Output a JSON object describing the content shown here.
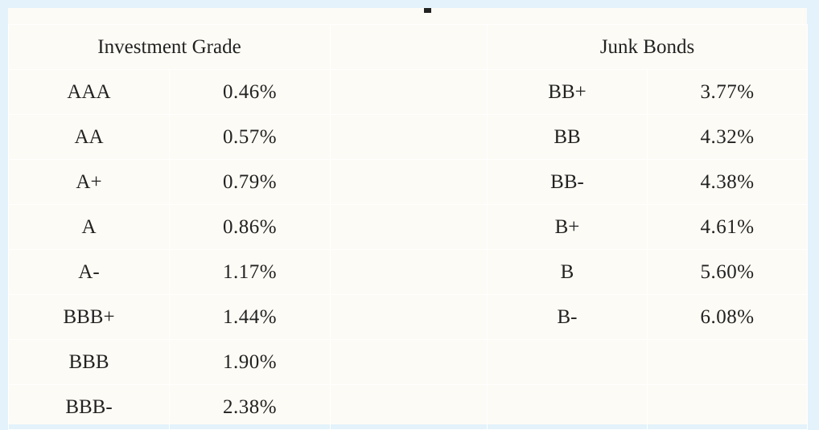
{
  "headers": {
    "investment_grade": "Investment Grade",
    "junk_bonds": "Junk Bonds"
  },
  "investment_grade": [
    {
      "rating": "AAA",
      "rate": "0.46%"
    },
    {
      "rating": "AA",
      "rate": "0.57%"
    },
    {
      "rating": "A+",
      "rate": "0.79%"
    },
    {
      "rating": "A",
      "rate": "0.86%"
    },
    {
      "rating": "A-",
      "rate": "1.17%"
    },
    {
      "rating": "BBB+",
      "rate": "1.44%"
    },
    {
      "rating": "BBB",
      "rate": "1.90%"
    },
    {
      "rating": "BBB-",
      "rate": "2.38%"
    }
  ],
  "junk_bonds": [
    {
      "rating": "BB+",
      "rate": "3.77%"
    },
    {
      "rating": "BB",
      "rate": "4.32%"
    },
    {
      "rating": "BB-",
      "rate": "4.38%"
    },
    {
      "rating": "B+",
      "rate": "4.61%"
    },
    {
      "rating": "B",
      "rate": "5.60%"
    },
    {
      "rating": "B-",
      "rate": "6.08%"
    }
  ],
  "colors": {
    "background": "#e3f2fb",
    "sheet": "#fdfbf5",
    "text": "#222222",
    "gridline": "#ffffff"
  }
}
